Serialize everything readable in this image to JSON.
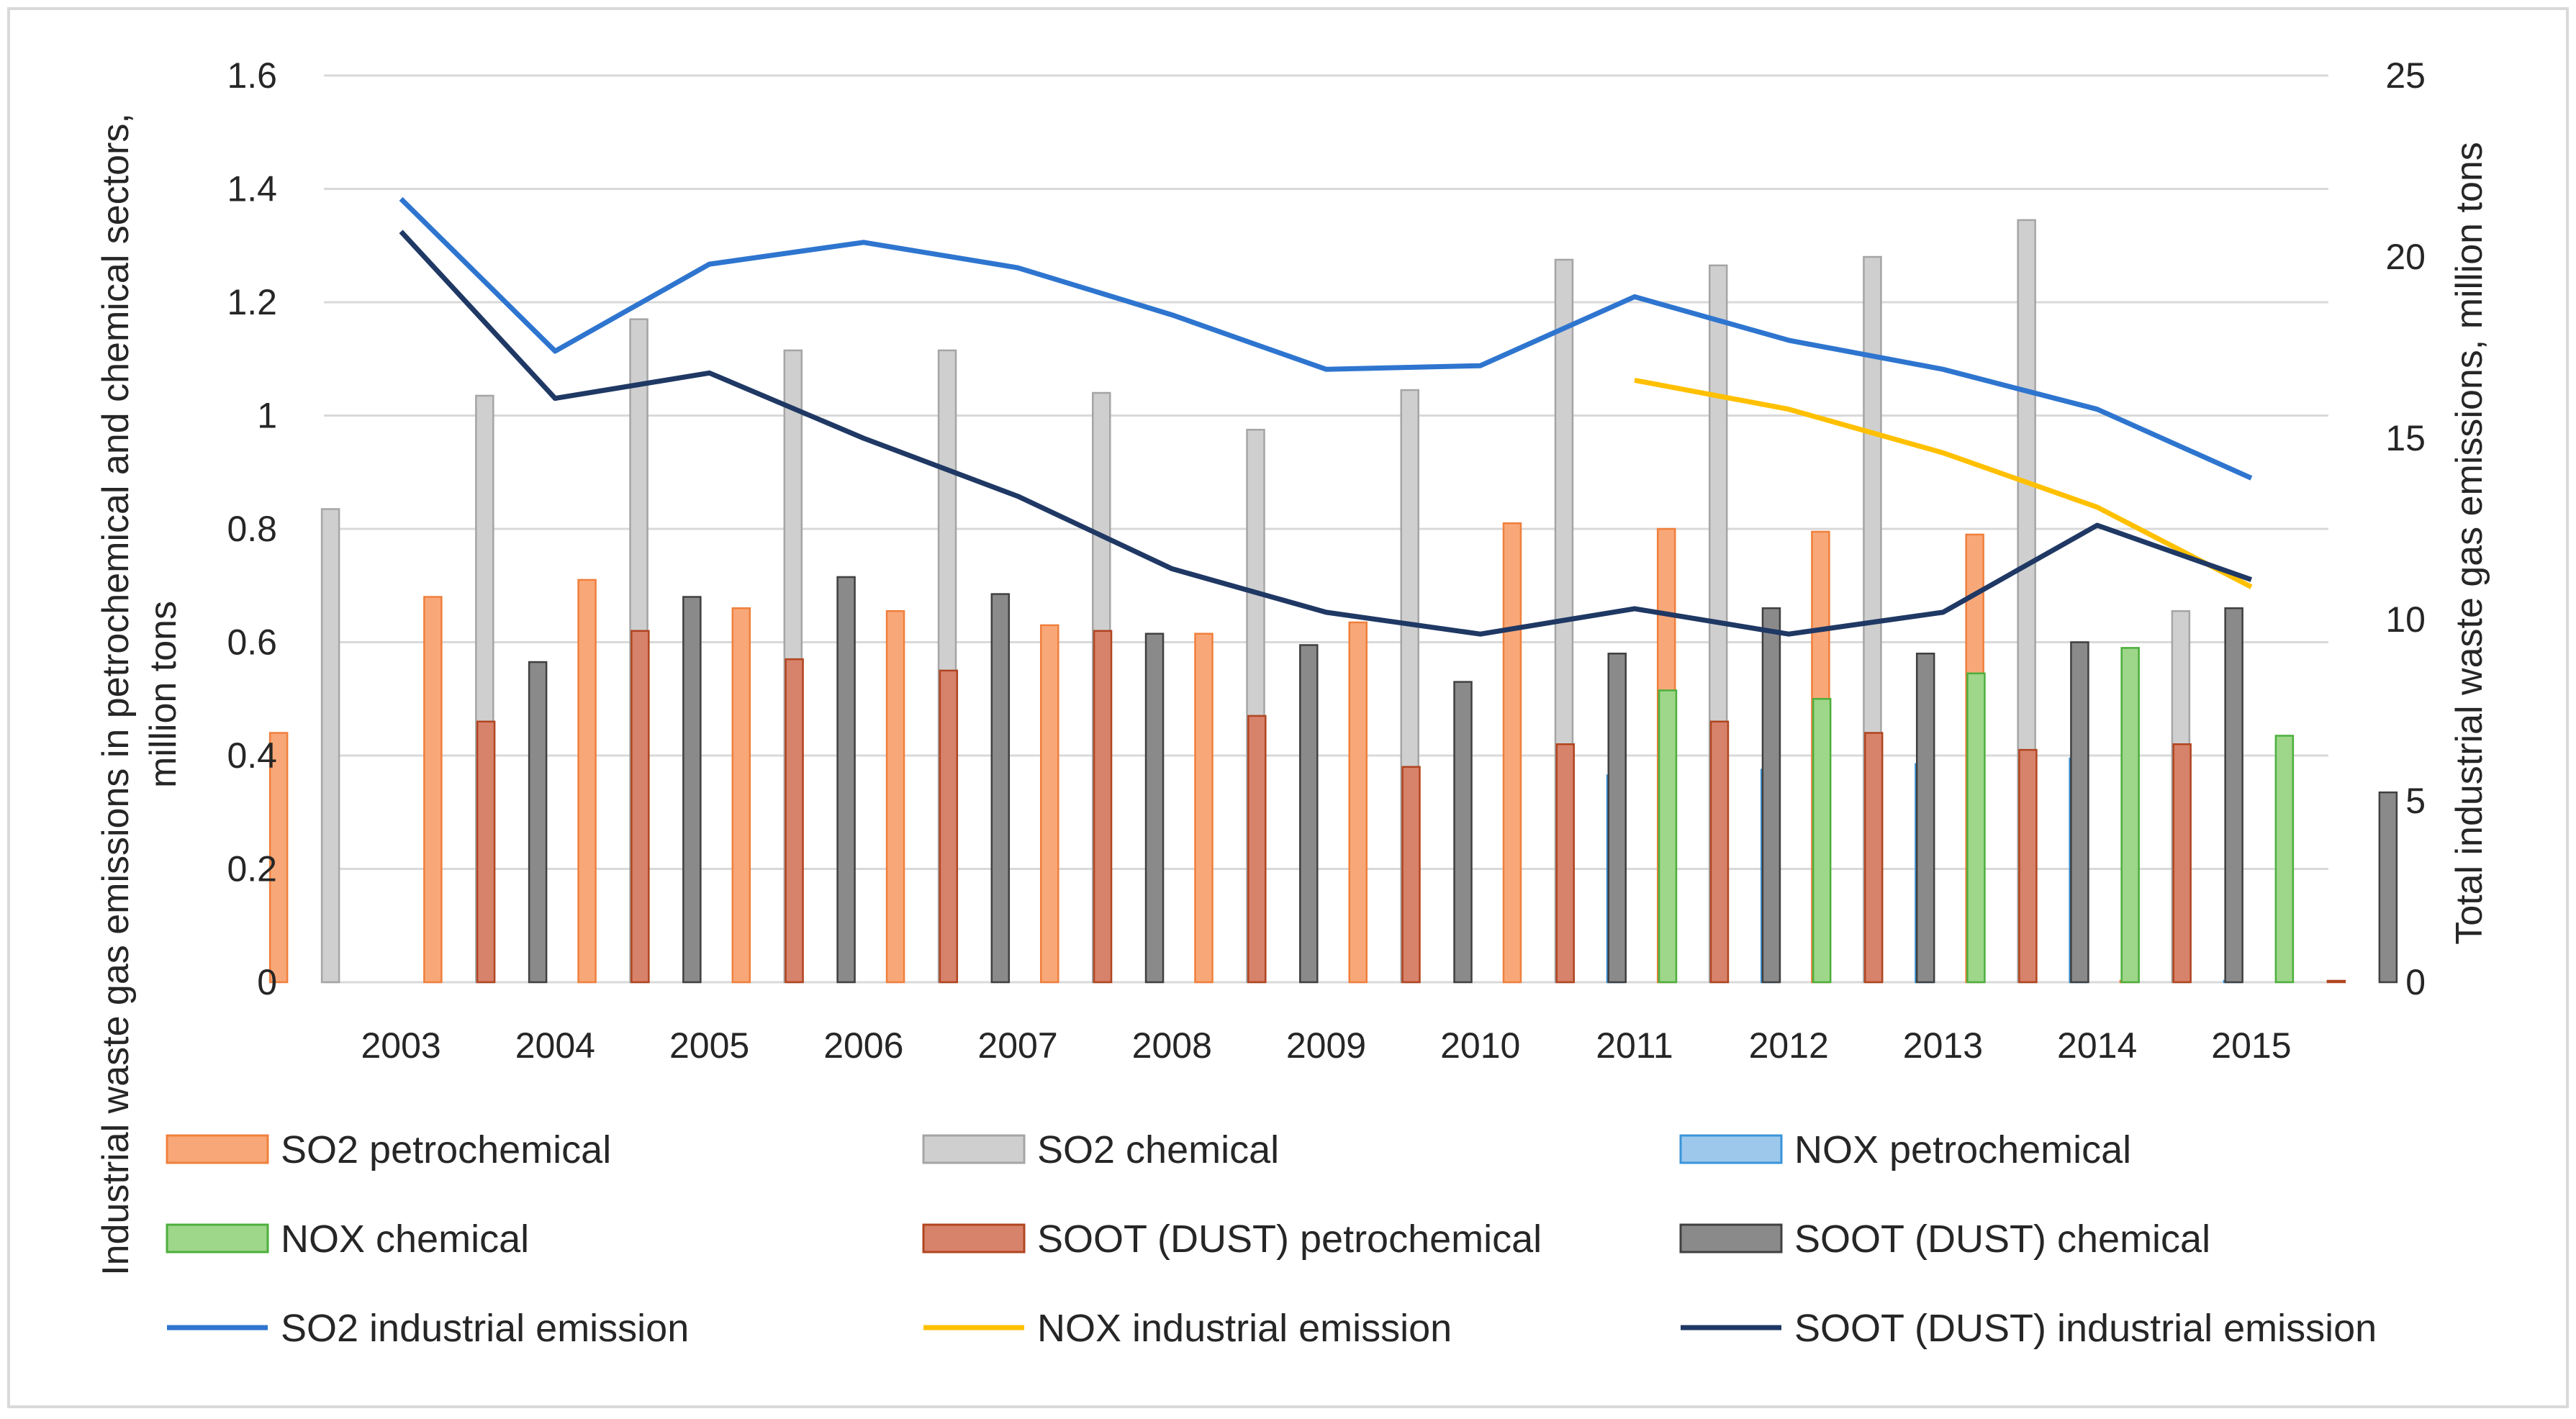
{
  "chart_data": {
    "type": "bar",
    "title": "",
    "categories": [
      "2003",
      "2004",
      "2005",
      "2006",
      "2007",
      "2008",
      "2009",
      "2010",
      "2011",
      "2012",
      "2013",
      "2014",
      "2015"
    ],
    "ylabel": "Industrial waste gas emissions in petrochemical and chemical sectors, million tons",
    "y2label": "Total industrial waste gas emissions, million tons",
    "ylim": [
      0,
      1.6
    ],
    "y2lim": [
      0,
      25
    ],
    "yticks": [
      "0",
      "0.2",
      "0.4",
      "0.6",
      "0.8",
      "1",
      "1.2",
      "1.4",
      "1.6"
    ],
    "y2ticks": [
      "0",
      "5",
      "10",
      "15",
      "20",
      "25"
    ],
    "grid": true,
    "legend_position": "bottom",
    "bar_series": [
      {
        "name": "SO2 petrochemical",
        "color": "#F8A878",
        "edge": "#F07F3C",
        "values": [
          0.44,
          0.68,
          0.71,
          0.66,
          0.655,
          0.63,
          0.615,
          0.635,
          0.81,
          0.8,
          0.795,
          0.79,
          0.0
        ]
      },
      {
        "name": "SO2 chemical",
        "color": "#CFCFCF",
        "edge": "#A5A5A5",
        "values": [
          0.835,
          1.035,
          1.17,
          1.115,
          1.115,
          1.04,
          0.975,
          1.045,
          1.275,
          1.265,
          1.28,
          1.345,
          0.655
        ]
      },
      {
        "name": "NOX petrochemical",
        "color": "#9DC8EC",
        "edge": "#3A94D8",
        "values": [
          null,
          null,
          null,
          null,
          null,
          null,
          null,
          null,
          0.365,
          0.375,
          0.385,
          0.395,
          0.0
        ]
      },
      {
        "name": "NOX chemical",
        "color": "#9ED68A",
        "edge": "#4CAF3C",
        "values": [
          null,
          null,
          null,
          null,
          null,
          null,
          null,
          null,
          0.515,
          0.5,
          0.545,
          0.59,
          0.435
        ]
      },
      {
        "name": "SOOT (DUST) petrochemical",
        "color": "#D7826A",
        "edge": "#B04520",
        "values": [
          0.46,
          0.62,
          0.57,
          0.55,
          0.62,
          0.47,
          0.38,
          0.42,
          0.46,
          0.44,
          0.41,
          0.42,
          0.0
        ]
      },
      {
        "name": "SOOT (DUST) chemical",
        "color": "#8A8A8A",
        "edge": "#404040",
        "values": [
          0.565,
          0.68,
          0.715,
          0.685,
          0.615,
          0.595,
          0.53,
          0.58,
          0.66,
          0.58,
          0.6,
          0.66,
          0.335
        ]
      }
    ],
    "line_series": [
      {
        "name": "SO2 industrial emission",
        "axis": "right",
        "color": "#2E75CF",
        "values": [
          21.6,
          17.4,
          19.8,
          20.4,
          19.7,
          18.4,
          16.9,
          17.0,
          18.9,
          17.7,
          16.9,
          15.8,
          13.9
        ]
      },
      {
        "name": "NOX industrial emission",
        "axis": "right",
        "color": "#FFC000",
        "values": [
          null,
          null,
          null,
          null,
          null,
          null,
          null,
          null,
          16.6,
          15.8,
          14.6,
          13.1,
          10.9
        ]
      },
      {
        "name": "SOOT (DUST) industrial emission",
        "axis": "right",
        "color": "#1F3864",
        "values": [
          20.7,
          16.1,
          16.8,
          15.0,
          13.4,
          11.4,
          10.2,
          9.6,
          10.3,
          9.6,
          10.2,
          12.6,
          11.1
        ]
      }
    ]
  }
}
